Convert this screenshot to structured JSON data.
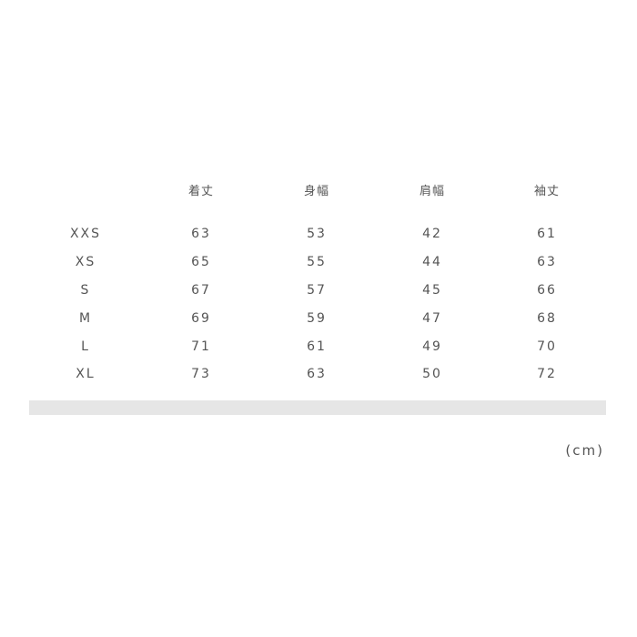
{
  "table": {
    "headers": [
      "着丈",
      "身幅",
      "肩幅",
      "袖丈"
    ],
    "rows": [
      {
        "size": "XXS",
        "values": [
          "63",
          "53",
          "42",
          "61"
        ]
      },
      {
        "size": "XS",
        "values": [
          "65",
          "55",
          "44",
          "63"
        ]
      },
      {
        "size": "S",
        "values": [
          "67",
          "57",
          "45",
          "66"
        ]
      },
      {
        "size": "M",
        "values": [
          "69",
          "59",
          "47",
          "68"
        ]
      },
      {
        "size": "L",
        "values": [
          "71",
          "61",
          "49",
          "70"
        ]
      },
      {
        "size": "XL",
        "values": [
          "73",
          "63",
          "50",
          "72"
        ]
      }
    ]
  },
  "unit": "(cm)",
  "colors": {
    "text": "#555555",
    "bar": "#e6e6e6"
  }
}
